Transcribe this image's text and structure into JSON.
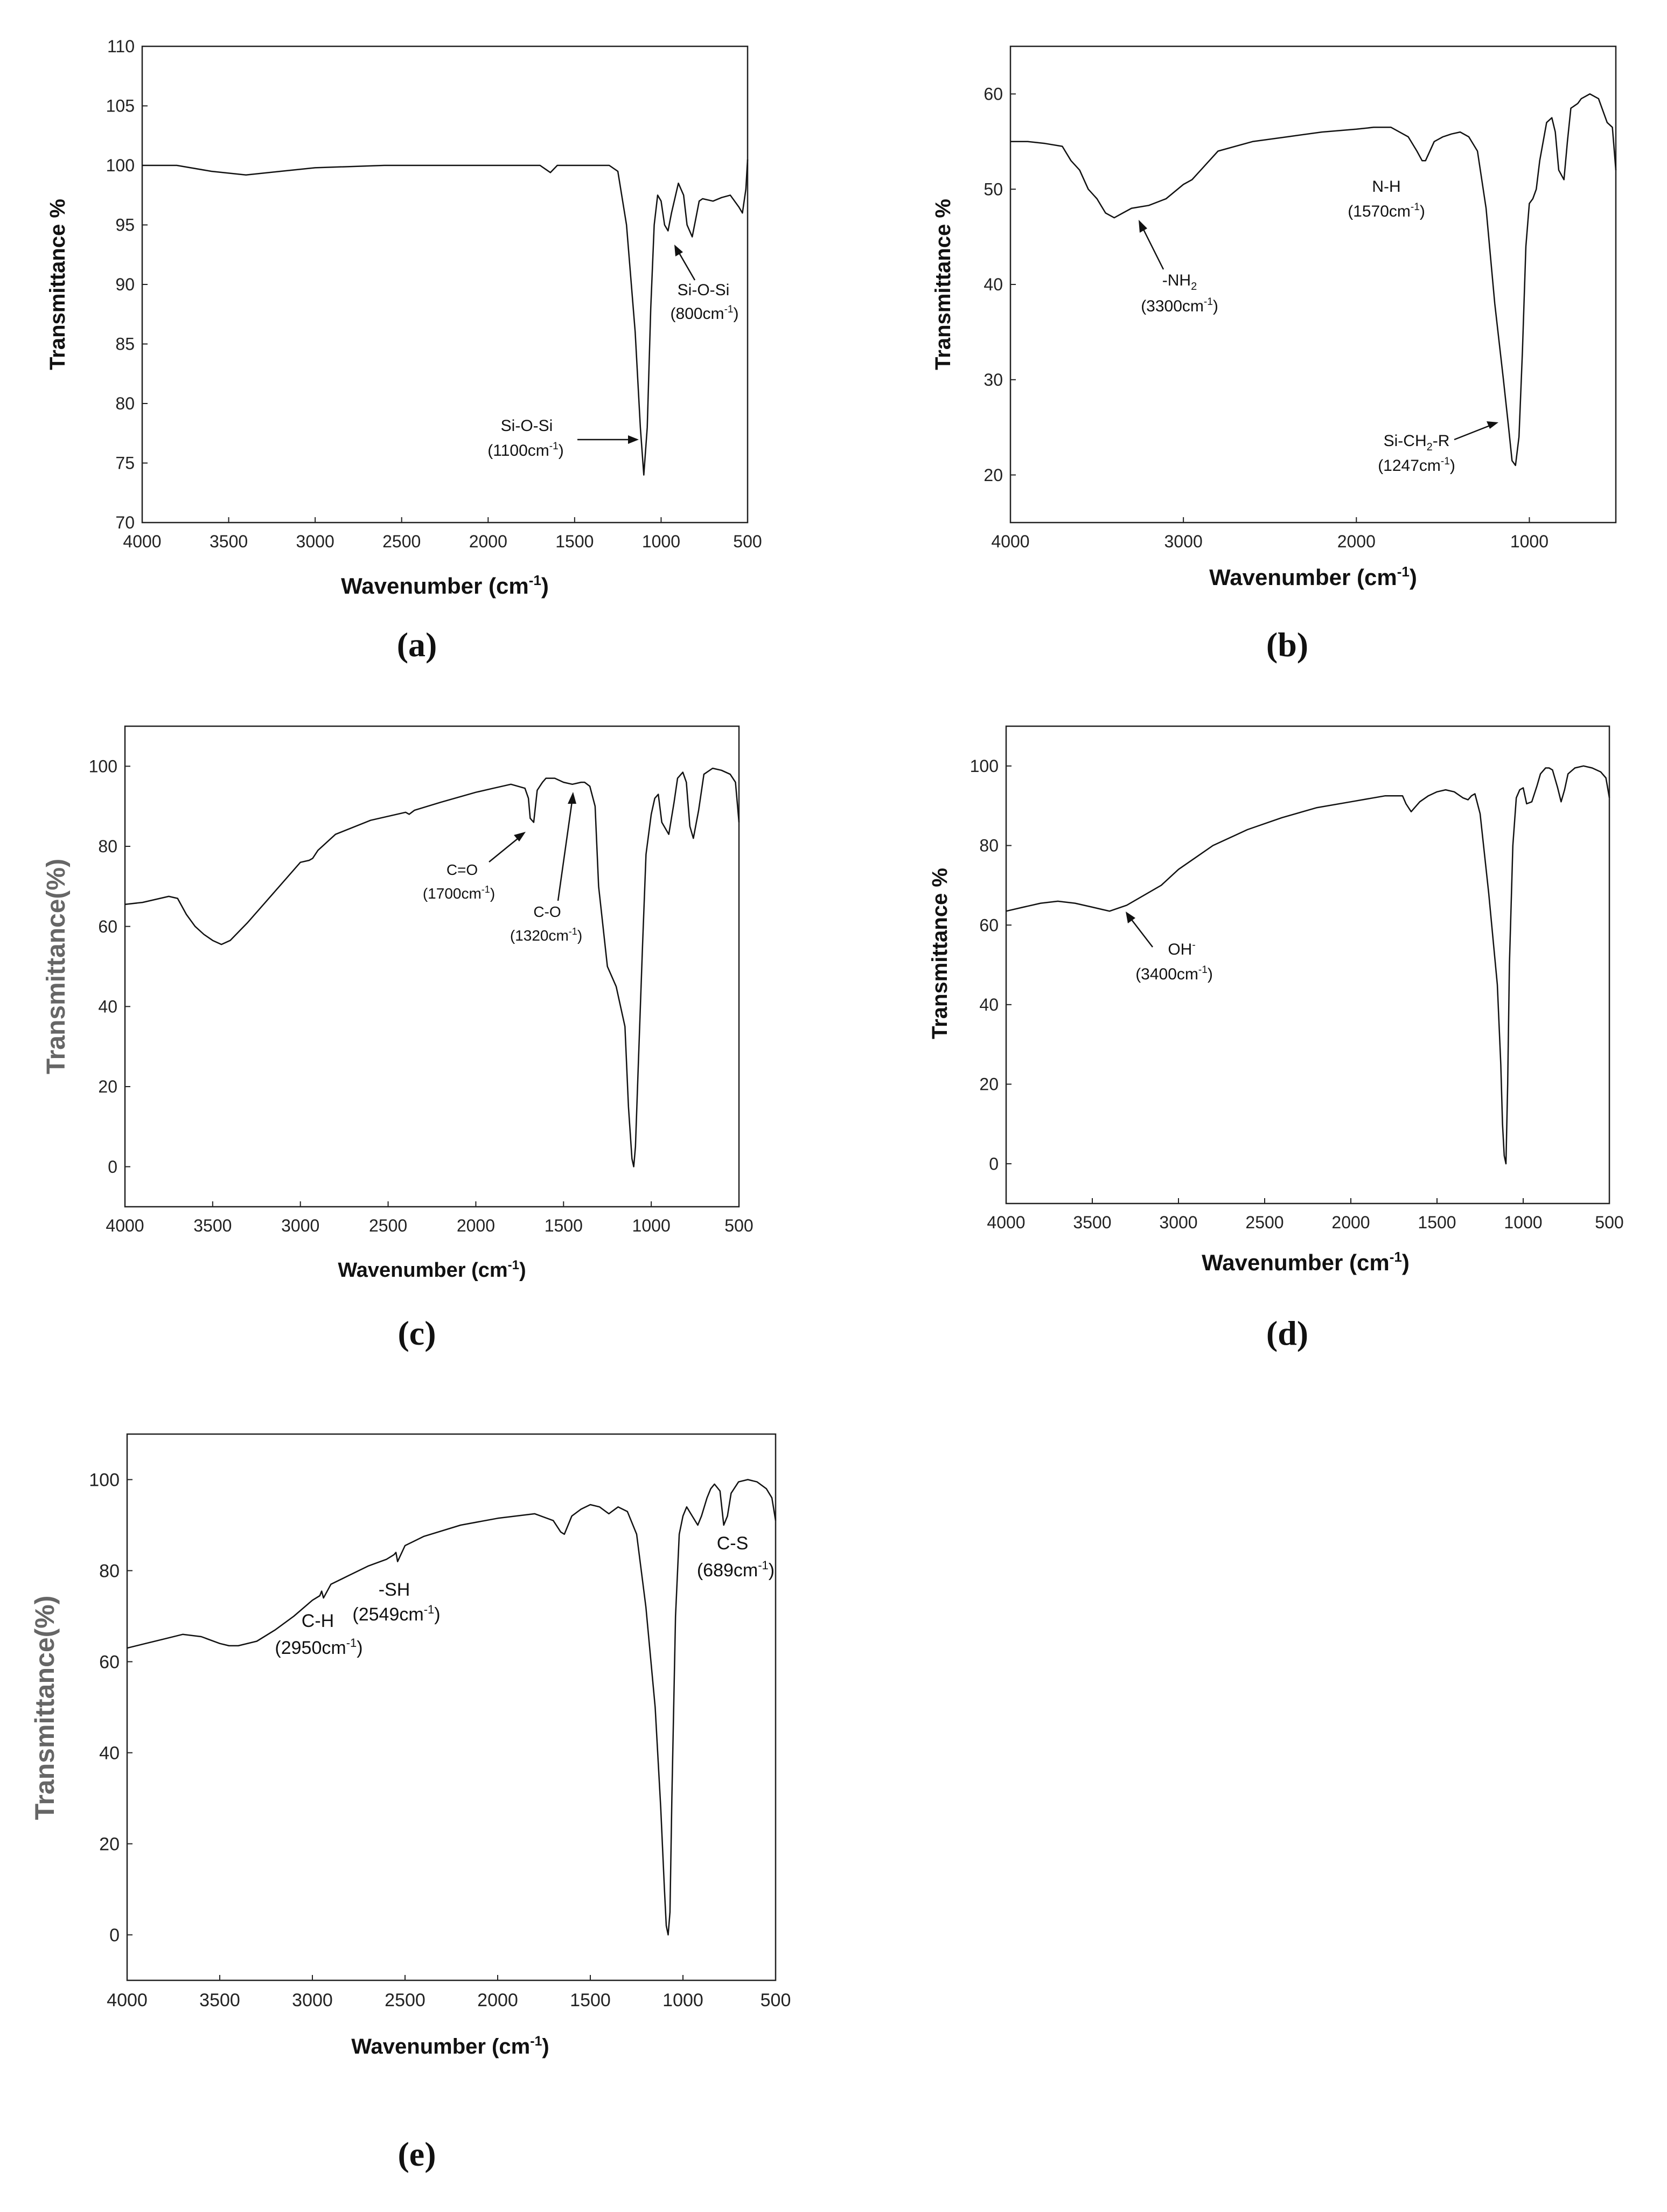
{
  "figure": {
    "panels": [
      {
        "id": "a",
        "label": "(a)"
      },
      {
        "id": "b",
        "label": "(b)"
      },
      {
        "id": "c",
        "label": "(c)"
      },
      {
        "id": "d",
        "label": "(d)"
      },
      {
        "id": "e",
        "label": "(e)"
      }
    ]
  },
  "chart_data": [
    {
      "id": "a",
      "type": "line",
      "xlabel": "Wavenumber (cm",
      "xlabel_sup": "-1",
      "xlabel_end": ")",
      "ylabel": "Transmittance %",
      "xlim": [
        4000,
        500
      ],
      "ylim": [
        70,
        110
      ],
      "xticks": [
        4000,
        3500,
        3000,
        2500,
        2000,
        1500,
        1000,
        500
      ],
      "yticks": [
        70,
        75,
        80,
        85,
        90,
        95,
        100,
        105,
        110
      ],
      "series": [
        {
          "name": "spectrum",
          "x": [
            4000,
            3800,
            3600,
            3400,
            3200,
            3000,
            2600,
            2000,
            1700,
            1640,
            1600,
            1400,
            1300,
            1250,
            1200,
            1150,
            1120,
            1100,
            1080,
            1060,
            1040,
            1020,
            1000,
            980,
            960,
            940,
            900,
            870,
            850,
            820,
            800,
            780,
            760,
            700,
            650,
            600,
            550,
            530,
            510,
            500
          ],
          "y": [
            100,
            100,
            99.5,
            99.2,
            99.5,
            99.8,
            100,
            100,
            100,
            99.4,
            100,
            100,
            100,
            99.5,
            95,
            86,
            78,
            74,
            78,
            88,
            95,
            97.5,
            97,
            95,
            94.5,
            96,
            98.5,
            97.5,
            95,
            94,
            95.5,
            97,
            97.2,
            97,
            97.3,
            97.5,
            96.5,
            96,
            98,
            100.5
          ]
        }
      ],
      "annotations": [
        {
          "text": "Si-O-Si",
          "value": "(1100cm",
          "sup": "-1",
          "end": ")",
          "target": [
            1100,
            77.5
          ]
        },
        {
          "text": "Si-O-Si",
          "value": "(800cm",
          "sup": "-1",
          "end": ")",
          "target": [
            990,
            95
          ]
        }
      ]
    },
    {
      "id": "b",
      "type": "line",
      "xlabel": "Wavenumber (cm",
      "xlabel_sup": "-1",
      "xlabel_end": ")",
      "ylabel": "Transmittance %",
      "xlim": [
        4000,
        500
      ],
      "ylim": [
        15,
        65
      ],
      "xticks": [
        4000,
        3000,
        2000,
        1000
      ],
      "yticks": [
        20,
        30,
        40,
        50,
        60
      ],
      "series": [
        {
          "name": "spectrum",
          "x": [
            4000,
            3900,
            3800,
            3700,
            3650,
            3600,
            3550,
            3500,
            3450,
            3400,
            3350,
            3300,
            3200,
            3100,
            3000,
            2950,
            2900,
            2800,
            2600,
            2400,
            2200,
            2000,
            1900,
            1800,
            1700,
            1650,
            1620,
            1600,
            1550,
            1500,
            1450,
            1400,
            1350,
            1300,
            1250,
            1200,
            1150,
            1120,
            1100,
            1080,
            1060,
            1040,
            1020,
            1000,
            980,
            960,
            940,
            900,
            870,
            850,
            830,
            800,
            780,
            760,
            720,
            700,
            650,
            600,
            550,
            520,
            500
          ],
          "y": [
            55,
            55,
            54.8,
            54.5,
            53,
            52,
            50,
            49,
            47.5,
            47,
            47.5,
            48,
            48.3,
            49,
            50.5,
            51,
            52,
            54,
            55,
            55.5,
            56,
            56.3,
            56.5,
            56.5,
            55.5,
            54,
            53,
            53,
            55,
            55.5,
            55.8,
            56,
            55.5,
            54,
            48,
            38,
            30,
            25,
            21.5,
            21,
            24,
            33,
            44,
            48.5,
            49,
            50,
            53,
            57,
            57.5,
            56,
            52,
            51,
            55,
            58.5,
            59,
            59.5,
            60,
            59.5,
            57,
            56.5,
            52
          ]
        }
      ],
      "annotations": [
        {
          "text": "-NH",
          "sub": "2",
          "value": "(3300cm",
          "sup": "-1",
          "end": ")",
          "target": [
            3300,
            47.5
          ]
        },
        {
          "text": "N-H",
          "value": "(1570cm",
          "sup": "-1",
          "end": ")"
        },
        {
          "text": "Si-CH",
          "sub": "2",
          "text_end": "-R",
          "value": "(1247cm",
          "sup": "-1",
          "end": ")",
          "target": [
            1100,
            25
          ]
        }
      ]
    },
    {
      "id": "c",
      "type": "line",
      "xlabel": "Wavenumber (cm",
      "xlabel_sup": "-1",
      "xlabel_end": ")",
      "ylabel": "Transmittance(%)",
      "xlim": [
        4000,
        500
      ],
      "ylim": [
        -10,
        110
      ],
      "xticks": [
        4000,
        3500,
        3000,
        2500,
        2000,
        1500,
        1000,
        500
      ],
      "yticks": [
        0,
        20,
        40,
        60,
        80,
        100
      ],
      "series": [
        {
          "name": "spectrum",
          "x": [
            4000,
            3900,
            3800,
            3750,
            3700,
            3650,
            3600,
            3550,
            3500,
            3450,
            3400,
            3300,
            3200,
            3100,
            3000,
            2950,
            2930,
            2900,
            2800,
            2600,
            2400,
            2380,
            2350,
            2200,
            2000,
            1900,
            1800,
            1720,
            1700,
            1690,
            1670,
            1650,
            1620,
            1600,
            1550,
            1500,
            1450,
            1400,
            1380,
            1350,
            1320,
            1300,
            1250,
            1200,
            1150,
            1130,
            1110,
            1100,
            1090,
            1070,
            1050,
            1030,
            1000,
            980,
            960,
            940,
            900,
            870,
            850,
            820,
            800,
            780,
            760,
            730,
            700,
            650,
            600,
            550,
            520,
            500
          ],
          "y": [
            65.5,
            66,
            67,
            67.5,
            67,
            63,
            60,
            58,
            56.5,
            55.5,
            56.5,
            61,
            66,
            71,
            76,
            76.5,
            77,
            79,
            83,
            86.5,
            88.5,
            88,
            89,
            91,
            93.5,
            94.5,
            95.5,
            94.5,
            92,
            87,
            86,
            94,
            96,
            97,
            97,
            96,
            95.5,
            96,
            96,
            95,
            90,
            70,
            50,
            45,
            35,
            15,
            2,
            0,
            5,
            30,
            55,
            78,
            88,
            92,
            93,
            86,
            83,
            91,
            97,
            98.5,
            96,
            85,
            82,
            89,
            98,
            99.5,
            99,
            98,
            96,
            86
          ]
        }
      ],
      "annotations": [
        {
          "text": "C=O",
          "value": "(1700cm",
          "sup": "-1",
          "end": ")",
          "target": [
            1670,
            85
          ]
        },
        {
          "text": "C-O",
          "value": "(1320cm",
          "sup": "-1",
          "end": ")",
          "target": [
            1480,
            96
          ]
        }
      ]
    },
    {
      "id": "d",
      "type": "line",
      "xlabel": "Wavenumber (cm",
      "xlabel_sup": "-1",
      "xlabel_end": ")",
      "ylabel": "Transmittance %",
      "xlim": [
        4000,
        500
      ],
      "ylim": [
        -10,
        110
      ],
      "xticks": [
        4000,
        3500,
        3000,
        2500,
        2000,
        1500,
        1000,
        500
      ],
      "yticks": [
        0,
        20,
        40,
        60,
        80,
        100
      ],
      "series": [
        {
          "name": "spectrum",
          "x": [
            4000,
            3900,
            3800,
            3700,
            3600,
            3500,
            3450,
            3400,
            3300,
            3200,
            3100,
            3000,
            2900,
            2800,
            2600,
            2400,
            2200,
            2000,
            1800,
            1700,
            1680,
            1650,
            1620,
            1600,
            1550,
            1500,
            1450,
            1400,
            1350,
            1320,
            1300,
            1280,
            1250,
            1200,
            1150,
            1130,
            1120,
            1110,
            1100,
            1090,
            1080,
            1060,
            1040,
            1020,
            1000,
            980,
            950,
            920,
            900,
            870,
            850,
            830,
            800,
            780,
            760,
            740,
            700,
            650,
            600,
            550,
            520,
            500
          ],
          "y": [
            63.5,
            64.5,
            65.5,
            66,
            65.5,
            64.5,
            64,
            63.5,
            65,
            67.5,
            70,
            74,
            77,
            80,
            84,
            87,
            89.5,
            91,
            92.5,
            92.5,
            90.5,
            88.5,
            90,
            91,
            92.5,
            93.5,
            94,
            93.5,
            92,
            91.5,
            92.5,
            93,
            88,
            68,
            45,
            25,
            10,
            2,
            0,
            20,
            50,
            80,
            92,
            94,
            94.5,
            90.5,
            91,
            95,
            98,
            99.5,
            99.5,
            99,
            94.5,
            91,
            94,
            98,
            99.5,
            100,
            99.5,
            98.5,
            97,
            92
          ]
        }
      ],
      "annotations": [
        {
          "text": "OH",
          "text_sup": "-",
          "value": "(3400cm",
          "sup": "-1",
          "end": ")",
          "target": [
            3300,
            64
          ]
        }
      ]
    },
    {
      "id": "e",
      "type": "line",
      "xlabel": "Wavenumber (cm",
      "xlabel_sup": "-1",
      "xlabel_end": ")",
      "ylabel": "Transmittance(%)",
      "xlim": [
        4000,
        500
      ],
      "ylim": [
        -10,
        110
      ],
      "xticks": [
        4000,
        3500,
        3000,
        2500,
        2000,
        1500,
        1000,
        500
      ],
      "yticks": [
        0,
        20,
        40,
        60,
        80,
        100
      ],
      "series": [
        {
          "name": "spectrum",
          "x": [
            4000,
            3900,
            3800,
            3700,
            3600,
            3500,
            3450,
            3400,
            3300,
            3200,
            3100,
            3000,
            2960,
            2950,
            2940,
            2900,
            2800,
            2700,
            2600,
            2560,
            2549,
            2540,
            2500,
            2400,
            2200,
            2000,
            1800,
            1700,
            1660,
            1640,
            1620,
            1600,
            1550,
            1500,
            1450,
            1400,
            1350,
            1300,
            1250,
            1200,
            1150,
            1120,
            1100,
            1090,
            1080,
            1070,
            1060,
            1040,
            1020,
            1000,
            980,
            950,
            920,
            900,
            870,
            850,
            830,
            800,
            780,
            760,
            740,
            700,
            650,
            600,
            550,
            520,
            500
          ],
          "y": [
            63,
            64,
            65,
            66,
            65.5,
            64,
            63.5,
            63.5,
            64.5,
            67,
            70,
            73.5,
            74.5,
            75.5,
            74,
            77,
            79,
            81,
            82.5,
            83.5,
            84,
            82,
            85.5,
            87.5,
            90,
            91.5,
            92.5,
            91,
            88.5,
            88,
            90,
            92,
            93.5,
            94.5,
            94,
            92.5,
            94,
            93,
            88,
            72,
            50,
            28,
            10,
            2,
            0,
            5,
            30,
            70,
            88,
            92,
            94,
            92,
            90,
            92,
            96,
            98,
            99,
            97.5,
            90,
            92,
            97,
            99.5,
            100,
            99.5,
            98,
            96,
            91
          ]
        }
      ],
      "annotations": [
        {
          "text": "C-H",
          "value": "(2950cm",
          "sup": "-1",
          "end": ")"
        },
        {
          "text": "-SH",
          "value": "(2549cm",
          "sup": "-1",
          "end": ")"
        },
        {
          "text": "C-S",
          "value": "(689cm",
          "sup": "-1",
          "end": ")"
        }
      ]
    }
  ]
}
